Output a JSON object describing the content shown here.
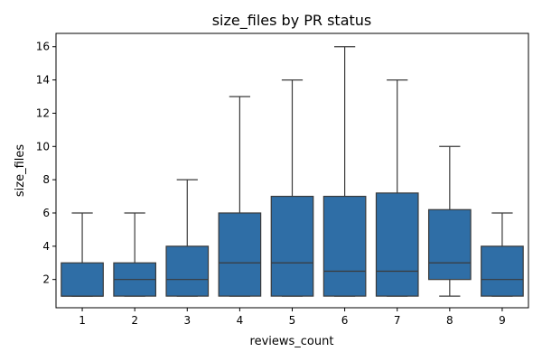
{
  "chart_data": {
    "type": "box",
    "title": "size_files by PR status",
    "xlabel": "reviews_count",
    "ylabel": "size_files",
    "ylim": [
      0.3,
      16.8
    ],
    "yticks": [
      2,
      4,
      6,
      8,
      10,
      12,
      14,
      16
    ],
    "grid": false,
    "box_color": "#2f6ea6",
    "line_color": "#3a3a3a",
    "categories": [
      "1",
      "2",
      "3",
      "4",
      "5",
      "6",
      "7",
      "8",
      "9"
    ],
    "boxes": [
      {
        "category": "1",
        "whisker_low": 1,
        "q1": 1,
        "median": 1,
        "q3": 3,
        "whisker_high": 6
      },
      {
        "category": "2",
        "whisker_low": 1,
        "q1": 1,
        "median": 2,
        "q3": 3,
        "whisker_high": 6
      },
      {
        "category": "3",
        "whisker_low": 1,
        "q1": 1,
        "median": 2,
        "q3": 4,
        "whisker_high": 8
      },
      {
        "category": "4",
        "whisker_low": 1,
        "q1": 1,
        "median": 3,
        "q3": 6,
        "whisker_high": 13
      },
      {
        "category": "5",
        "whisker_low": 1,
        "q1": 1,
        "median": 3,
        "q3": 7,
        "whisker_high": 14
      },
      {
        "category": "6",
        "whisker_low": 1,
        "q1": 1,
        "median": 2.5,
        "q3": 7,
        "whisker_high": 16
      },
      {
        "category": "7",
        "whisker_low": 1,
        "q1": 1,
        "median": 2.5,
        "q3": 7.2,
        "whisker_high": 14
      },
      {
        "category": "8",
        "whisker_low": 1,
        "q1": 2,
        "median": 3,
        "q3": 6.2,
        "whisker_high": 10
      },
      {
        "category": "9",
        "whisker_low": 1,
        "q1": 1,
        "median": 2,
        "q3": 4,
        "whisker_high": 6
      }
    ]
  }
}
